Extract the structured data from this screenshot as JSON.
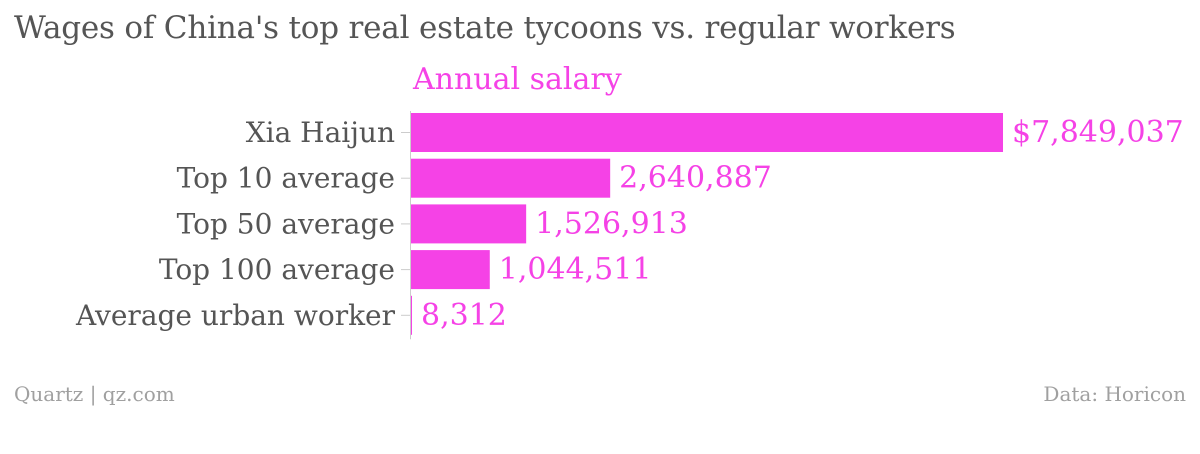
{
  "title": "Wages of China's top real estate tycoons vs. regular workers",
  "footer": {
    "source": "Quartz | qz.com",
    "data_credit": "Data: Horicon"
  },
  "colors": {
    "bar": "#f542e6",
    "label_text": "#555555",
    "axis_line": "#cccccc"
  },
  "chart_data": {
    "type": "bar",
    "orientation": "horizontal",
    "categories": [
      "Xia Haijun",
      "Top 10 average",
      "Top 50 average",
      "Top 100 average",
      "Average urban worker"
    ],
    "series": [
      {
        "name": "Annual salary",
        "values": [
          7849037,
          2640887,
          1526913,
          1044511,
          8312
        ],
        "value_labels": [
          "$7,849,037",
          "2,640,887",
          "1,526,913",
          "1,044,511",
          "8,312"
        ]
      }
    ],
    "xlim": [
      0,
      7849037
    ],
    "grid": false,
    "legend": "none"
  }
}
